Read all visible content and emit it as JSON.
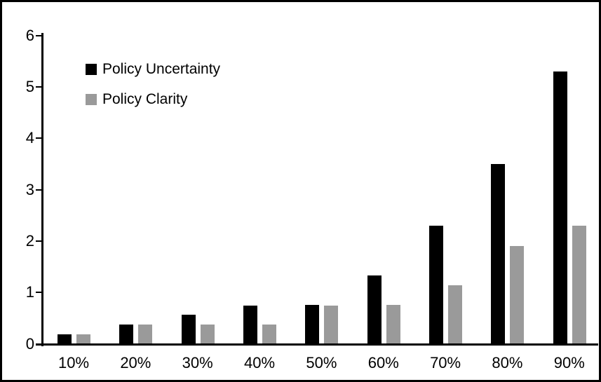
{
  "chart_data": {
    "type": "bar",
    "title": "",
    "xlabel": "",
    "ylabel": "",
    "categories": [
      "10%",
      "20%",
      "30%",
      "40%",
      "50%",
      "60%",
      "70%",
      "80%",
      "90%"
    ],
    "series": [
      {
        "name": "Policy Uncertainty",
        "color": "#000000",
        "values": [
          0.19,
          0.38,
          0.57,
          0.75,
          0.76,
          1.33,
          2.3,
          3.5,
          5.3
        ]
      },
      {
        "name": "Policy Clarity",
        "color": "#9a9a9a",
        "values": [
          0.19,
          0.38,
          0.38,
          0.38,
          0.75,
          0.76,
          1.14,
          1.9,
          2.3
        ]
      }
    ],
    "ylim": [
      0,
      6
    ],
    "yticks": [
      0,
      1,
      2,
      3,
      4,
      5,
      6
    ],
    "grid": false,
    "legend_position": "top-left-inside"
  },
  "colors": {
    "axis": "#000000",
    "border": "#000000",
    "background": "#ffffff"
  }
}
